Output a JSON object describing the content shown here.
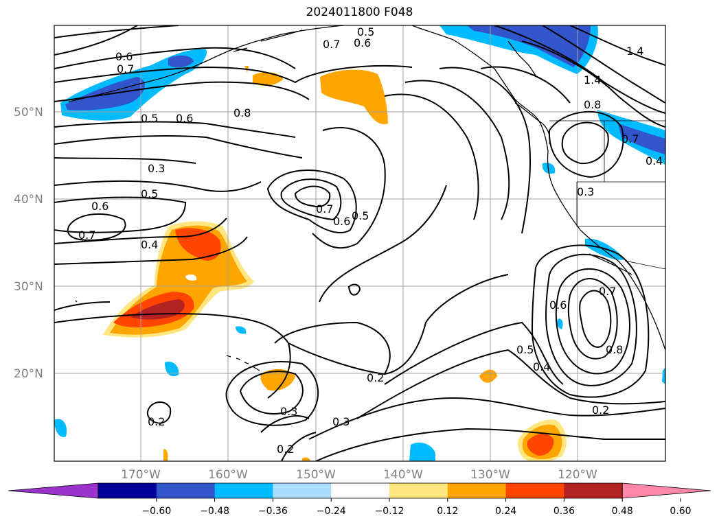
{
  "map": {
    "title": "2024011800 F048",
    "lat_labels": [
      "50°N",
      "40°N",
      "30°N",
      "20°N"
    ],
    "lon_labels": [
      "170°W",
      "160°W",
      "150°W",
      "140°W",
      "130°W",
      "120°W"
    ],
    "contour_labels": [
      "0.5",
      "0.7",
      "0.6",
      "0.6",
      "0.7",
      "0.5",
      "0.6",
      "0.8",
      "0.3",
      "0.5",
      "0.6",
      "0.7",
      "0.4",
      "0.7",
      "0.6",
      "0.5",
      "1.4",
      "1.4",
      "0.8",
      "0.7",
      "0.4",
      "0.3",
      "0.6",
      "0.7",
      "0.5",
      "0.4",
      "0.8",
      "0.2",
      "0.3",
      "0.3",
      "0.2",
      "0.2",
      "0.2"
    ]
  },
  "colorbar": {
    "ticks": [
      "−0.60",
      "−0.48",
      "−0.36",
      "−0.24",
      "−0.12",
      "0.12",
      "0.24",
      "0.36",
      "0.48",
      "0.60"
    ],
    "colors": [
      "#9933cc",
      "#000099",
      "#3355cc",
      "#00bbff",
      "#aaddff",
      "#ffffff",
      "#ffe680",
      "#ffa500",
      "#ff4500",
      "#b22222",
      "#ff88aa"
    ]
  }
}
